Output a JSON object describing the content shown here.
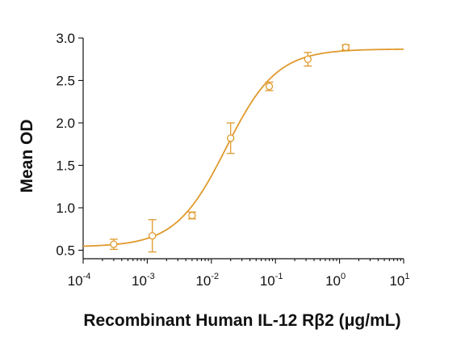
{
  "chart_data": {
    "type": "scatter",
    "title": "",
    "xlabel": "Recombinant Human IL-12 Rβ2 (μg/mL)",
    "ylabel": "Mean OD",
    "xscale": "log",
    "xlim": [
      0.0001,
      10
    ],
    "ylim": [
      0.4,
      3.0
    ],
    "grid": false,
    "legend": "none",
    "color": "#e09a2d",
    "x_ticks": [
      {
        "value": 0.0001,
        "base": "10",
        "exp": "-4"
      },
      {
        "value": 0.001,
        "base": "10",
        "exp": "-3"
      },
      {
        "value": 0.01,
        "base": "10",
        "exp": "-2"
      },
      {
        "value": 0.1,
        "base": "10",
        "exp": "-1"
      },
      {
        "value": 1,
        "base": "10",
        "exp": "0"
      },
      {
        "value": 10,
        "base": "10",
        "exp": "1"
      }
    ],
    "y_ticks": [
      {
        "value": 0.5,
        "label": "0.5"
      },
      {
        "value": 1.0,
        "label": "1.0"
      },
      {
        "value": 1.5,
        "label": "1.5"
      },
      {
        "value": 2.0,
        "label": "2.0"
      },
      {
        "value": 2.5,
        "label": "2.5"
      },
      {
        "value": 3.0,
        "label": "3.0"
      }
    ],
    "points": [
      {
        "x": 0.0003,
        "y": 0.57,
        "err": 0.06
      },
      {
        "x": 0.0012,
        "y": 0.67,
        "err": 0.19
      },
      {
        "x": 0.005,
        "y": 0.91,
        "err": 0.04
      },
      {
        "x": 0.02,
        "y": 1.82,
        "err": 0.18
      },
      {
        "x": 0.08,
        "y": 2.43,
        "err": 0.05
      },
      {
        "x": 0.32,
        "y": 2.75,
        "err": 0.08
      },
      {
        "x": 1.25,
        "y": 2.89,
        "err": 0.03
      }
    ],
    "fit": {
      "model": "4PL",
      "bottom": 0.54,
      "top": 2.87,
      "ec50": 0.017,
      "hill": 1.1
    }
  }
}
